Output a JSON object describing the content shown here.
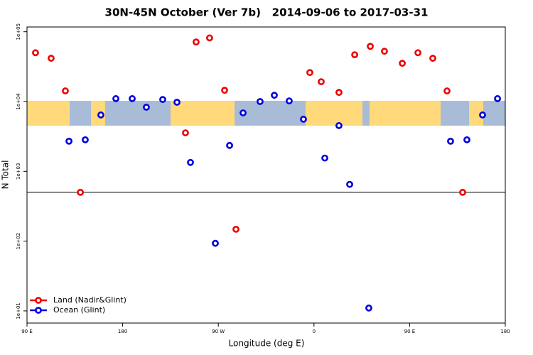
{
  "chart_data": {
    "type": "scatter",
    "title": "30N-45N October (Ver 7b)   2014-09-06 to 2017-03-31",
    "x_label": "Longitude (deg E)",
    "y_label": "N Total",
    "xlim": [
      90,
      540
    ],
    "xticks": [
      {
        "value": 90,
        "label": "90 E"
      },
      {
        "value": 180,
        "label": "180"
      },
      {
        "value": 270,
        "label": "90 W"
      },
      {
        "value": 360,
        "label": "0"
      },
      {
        "value": 450,
        "label": "90 E"
      },
      {
        "value": 540,
        "label": "180"
      }
    ],
    "ylim": [
      6.7,
      117000
    ],
    "log_y": true,
    "yticks": [
      {
        "value": 10,
        "label": "1e+01"
      },
      {
        "value": 100,
        "label": "1e+02"
      },
      {
        "value": 1000,
        "label": "1e+03"
      },
      {
        "value": 10000,
        "label": "1e+04"
      },
      {
        "value": 100000,
        "label": "1e+05"
      }
    ],
    "reference_line": 500,
    "legend": "bottom-left",
    "series": [
      {
        "name": "Land (Nadir&Glint)",
        "color": "#ee0000",
        "x": [
          98.0,
          112.7,
          126.1,
          140.2,
          239.1,
          249.1,
          261.8,
          275.9,
          286.6,
          356.1,
          366.8,
          383.5,
          398.3,
          413.0,
          426.3,
          443.1,
          457.8,
          471.8,
          485.2,
          499.9
        ],
        "values": [
          50000,
          41700,
          14200,
          500,
          3560,
          71300,
          81500,
          14500,
          148,
          26000,
          19200,
          13500,
          46800,
          61800,
          52500,
          35300,
          50000,
          41700,
          14200,
          500
        ]
      },
      {
        "name": "Ocean (Glint)",
        "color": "#0000dd",
        "x": [
          129.5,
          144.8,
          159.5,
          173.6,
          189.0,
          202.3,
          217.7,
          231.1,
          243.8,
          267.2,
          280.6,
          293.3,
          309.3,
          322.7,
          336.7,
          350.1,
          370.2,
          383.5,
          393.6,
          411.6,
          488.5,
          503.9,
          518.6,
          532.7
        ],
        "values": [
          2700,
          2830,
          6420,
          11000,
          11000,
          8290,
          10700,
          9770,
          1340,
          93,
          2350,
          6880,
          10000,
          12300,
          10200,
          5580,
          1550,
          4520,
          650,
          11,
          2700,
          2830,
          6420,
          11000
        ]
      }
    ]
  }
}
